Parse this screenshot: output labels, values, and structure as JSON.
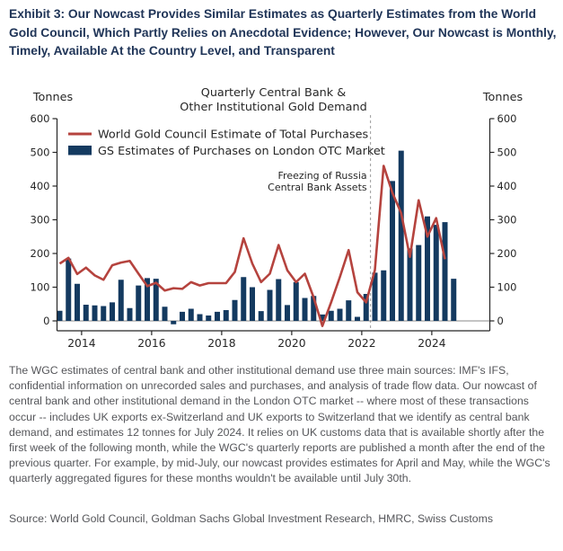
{
  "exhibit_title": "Exhibit 3: Our Nowcast Provides Similar Estimates as Quarterly Estimates from the World Gold Council, Which Partly Relies on Anecdotal Evidence; However, Our Nowcast is Monthly, Timely, Available At the Country Level, and Transparent",
  "chart_data": {
    "type": "bar",
    "subtype": "bar+line combo",
    "title": "Quarterly Central Bank & Other Institutional Gold Demand",
    "title_lines": [
      "Quarterly Central Bank &",
      "Other Institutional Gold Demand"
    ],
    "ylabel_left": "Tonnes",
    "ylabel_right": "Tonnes",
    "ylim": [
      0,
      600
    ],
    "yticks": [
      0,
      100,
      200,
      300,
      400,
      500,
      600
    ],
    "xticks": [
      "2014",
      "2016",
      "2018",
      "2020",
      "2022",
      "2024"
    ],
    "grid": false,
    "legend_position": "top-left",
    "categories": [
      "2013Q2",
      "2013Q3",
      "2013Q4",
      "2014Q1",
      "2014Q2",
      "2014Q3",
      "2014Q4",
      "2015Q1",
      "2015Q2",
      "2015Q3",
      "2015Q4",
      "2016Q1",
      "2016Q2",
      "2016Q3",
      "2016Q4",
      "2017Q1",
      "2017Q2",
      "2017Q3",
      "2017Q4",
      "2018Q1",
      "2018Q2",
      "2018Q3",
      "2018Q4",
      "2019Q1",
      "2019Q2",
      "2019Q3",
      "2019Q4",
      "2020Q1",
      "2020Q2",
      "2020Q3",
      "2020Q4",
      "2021Q1",
      "2021Q2",
      "2021Q3",
      "2021Q4",
      "2022Q1",
      "2022Q2",
      "2022Q3",
      "2022Q4",
      "2023Q1",
      "2023Q2",
      "2023Q3",
      "2023Q4",
      "2024Q1",
      "2024Q2",
      "2024Q3"
    ],
    "series": [
      {
        "name": "World Gold Council Estimate of Total Purchases",
        "type": "line",
        "color": "#b5433e",
        "values": [
          170,
          187,
          139,
          158,
          135,
          122,
          165,
          173,
          178,
          140,
          103,
          113,
          90,
          97,
          95,
          115,
          105,
          112,
          112,
          112,
          145,
          245,
          170,
          115,
          140,
          225,
          150,
          115,
          140,
          70,
          -15,
          55,
          130,
          210,
          85,
          55,
          151,
          460,
          380,
          320,
          190,
          358,
          250,
          305,
          183,
          null
        ]
      },
      {
        "name": "GS Estimates of Purchases on London OTC Market",
        "type": "bar",
        "color": "#143a60",
        "values": [
          30,
          185,
          110,
          48,
          46,
          44,
          55,
          122,
          38,
          105,
          127,
          125,
          42,
          -10,
          27,
          36,
          20,
          16,
          27,
          32,
          62,
          130,
          100,
          29,
          92,
          124,
          47,
          115,
          68,
          74,
          19,
          30,
          36,
          61,
          12,
          80,
          143,
          150,
          415,
          505,
          215,
          225,
          310,
          285,
          293,
          125
        ]
      }
    ],
    "annotation": {
      "text_lines": [
        "Freezing of Russia",
        "Central Bank Assets"
      ],
      "between": [
        "2022Q1",
        "2022Q2"
      ]
    }
  },
  "footnote": "The WGC estimates of central bank and other institutional demand use three main sources: IMF's IFS, confidential information on unrecorded sales and purchases, and analysis of trade flow data. Our nowcast of central bank and other institutional demand in the London OTC market -- where most of these transactions occur -- includes UK exports ex-Switzerland and UK exports to Switzerland that we identify as central bank demand, and estimates 12 tonnes for July 2024. It relies on UK customs data that is available shortly after the first week of the following month, while the WGC's quarterly reports are published a month after the end of the previous quarter. For example, by mid-July, our nowcast provides estimates for April and May, while the WGC's quarterly aggregated figures for these months wouldn't be available until July 30th.",
  "source": "Source: World Gold Council, Goldman Sachs Global Investment Research, HMRC, Swiss Customs"
}
